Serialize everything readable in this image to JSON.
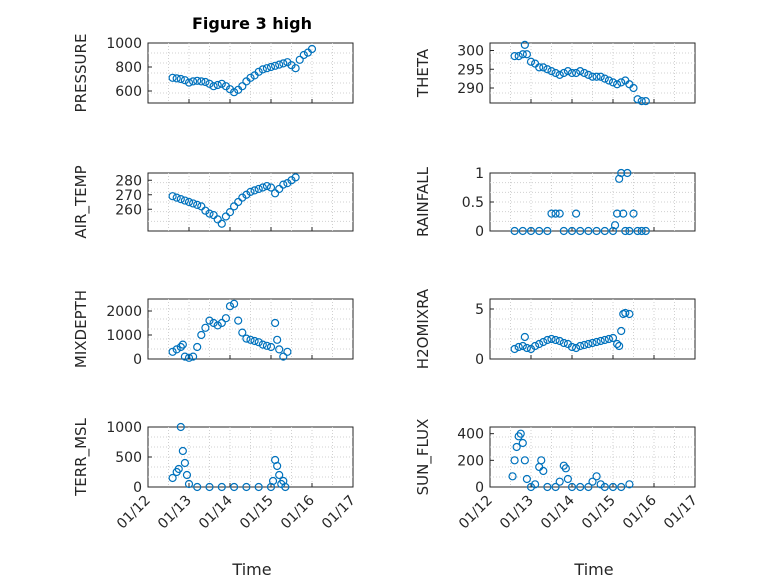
{
  "figure": {
    "title": "Figure 3 high",
    "xlabel": "Time"
  },
  "chart_data": [
    {
      "type": "scatter",
      "name": "PRESSURE",
      "ylabel": "PRESSURE",
      "ylim": [
        500,
        1000
      ],
      "yticks": [
        600,
        800,
        1000
      ],
      "xlim": [
        "01/12",
        "01/17"
      ],
      "xticks": [
        "01/12",
        "01/13",
        "01/14",
        "01/15",
        "01/16",
        "01/17"
      ],
      "show_xticks": false,
      "points": [
        [
          0.6,
          710
        ],
        [
          0.7,
          705
        ],
        [
          0.8,
          700
        ],
        [
          0.9,
          690
        ],
        [
          1.0,
          670
        ],
        [
          1.1,
          680
        ],
        [
          1.2,
          685
        ],
        [
          1.3,
          680
        ],
        [
          1.4,
          675
        ],
        [
          1.5,
          660
        ],
        [
          1.6,
          640
        ],
        [
          1.7,
          650
        ],
        [
          1.8,
          660
        ],
        [
          1.9,
          640
        ],
        [
          2.0,
          615
        ],
        [
          2.1,
          590
        ],
        [
          2.2,
          610
        ],
        [
          2.3,
          640
        ],
        [
          2.4,
          680
        ],
        [
          2.5,
          710
        ],
        [
          2.6,
          730
        ],
        [
          2.7,
          760
        ],
        [
          2.8,
          780
        ],
        [
          2.9,
          790
        ],
        [
          3.0,
          800
        ],
        [
          3.1,
          810
        ],
        [
          3.2,
          820
        ],
        [
          3.3,
          830
        ],
        [
          3.4,
          840
        ],
        [
          3.5,
          815
        ],
        [
          3.6,
          790
        ],
        [
          3.7,
          860
        ],
        [
          3.8,
          900
        ],
        [
          3.9,
          920
        ],
        [
          4.0,
          950
        ]
      ]
    },
    {
      "type": "scatter",
      "name": "THETA",
      "ylabel": "THETA",
      "ylim": [
        286,
        302
      ],
      "yticks": [
        290,
        295,
        300
      ],
      "xlim": [
        "01/12",
        "01/17"
      ],
      "xticks": [
        "01/12",
        "01/13",
        "01/14",
        "01/15",
        "01/16",
        "01/17"
      ],
      "show_xticks": false,
      "points": [
        [
          0.6,
          298.5
        ],
        [
          0.7,
          298.5
        ],
        [
          0.8,
          299
        ],
        [
          0.85,
          301.5
        ],
        [
          0.9,
          299
        ],
        [
          1.0,
          297
        ],
        [
          1.1,
          296.5
        ],
        [
          1.2,
          295.5
        ],
        [
          1.3,
          295.5
        ],
        [
          1.4,
          295
        ],
        [
          1.5,
          294.5
        ],
        [
          1.6,
          294
        ],
        [
          1.7,
          293.5
        ],
        [
          1.8,
          294
        ],
        [
          1.9,
          294.5
        ],
        [
          2.0,
          294
        ],
        [
          2.1,
          294
        ],
        [
          2.2,
          294.5
        ],
        [
          2.3,
          294
        ],
        [
          2.4,
          293.5
        ],
        [
          2.5,
          293
        ],
        [
          2.6,
          293
        ],
        [
          2.7,
          293
        ],
        [
          2.8,
          292.5
        ],
        [
          2.9,
          292
        ],
        [
          3.0,
          291.5
        ],
        [
          3.1,
          291
        ],
        [
          3.2,
          291.5
        ],
        [
          3.3,
          292
        ],
        [
          3.4,
          291
        ],
        [
          3.5,
          290
        ],
        [
          3.6,
          287
        ],
        [
          3.7,
          286.5
        ],
        [
          3.8,
          286.5
        ]
      ]
    },
    {
      "type": "scatter",
      "name": "AIR_TEMP",
      "ylabel": "AIR_TEMP",
      "ylim": [
        245,
        285
      ],
      "yticks": [
        260,
        270,
        280
      ],
      "xlim": [
        "01/12",
        "01/17"
      ],
      "xticks": [
        "01/12",
        "01/13",
        "01/14",
        "01/15",
        "01/16",
        "01/17"
      ],
      "show_xticks": false,
      "points": [
        [
          0.6,
          269
        ],
        [
          0.7,
          268
        ],
        [
          0.8,
          267
        ],
        [
          0.9,
          266
        ],
        [
          1.0,
          265
        ],
        [
          1.1,
          264
        ],
        [
          1.2,
          263
        ],
        [
          1.3,
          262
        ],
        [
          1.4,
          259
        ],
        [
          1.5,
          257
        ],
        [
          1.6,
          256
        ],
        [
          1.7,
          253
        ],
        [
          1.8,
          250
        ],
        [
          1.9,
          255
        ],
        [
          2.0,
          258
        ],
        [
          2.1,
          262
        ],
        [
          2.2,
          265
        ],
        [
          2.3,
          268
        ],
        [
          2.4,
          270
        ],
        [
          2.5,
          272
        ],
        [
          2.6,
          273
        ],
        [
          2.7,
          274
        ],
        [
          2.8,
          275
        ],
        [
          2.9,
          276
        ],
        [
          3.0,
          275
        ],
        [
          3.1,
          271
        ],
        [
          3.2,
          274
        ],
        [
          3.3,
          277
        ],
        [
          3.4,
          278
        ],
        [
          3.5,
          280
        ],
        [
          3.6,
          282
        ]
      ]
    },
    {
      "type": "scatter",
      "name": "RAINFALL",
      "ylabel": "RAINFALL",
      "ylim": [
        0,
        1
      ],
      "yticks": [
        0,
        0.5,
        1
      ],
      "xlim": [
        "01/12",
        "01/17"
      ],
      "xticks": [
        "01/12",
        "01/13",
        "01/14",
        "01/15",
        "01/16",
        "01/17"
      ],
      "show_xticks": false,
      "points": [
        [
          0.6,
          0
        ],
        [
          0.8,
          0
        ],
        [
          1.0,
          0
        ],
        [
          1.2,
          0
        ],
        [
          1.4,
          0
        ],
        [
          1.5,
          0.3
        ],
        [
          1.6,
          0.3
        ],
        [
          1.7,
          0.3
        ],
        [
          1.8,
          0
        ],
        [
          2.0,
          0
        ],
        [
          2.1,
          0.3
        ],
        [
          2.2,
          0
        ],
        [
          2.4,
          0
        ],
        [
          2.6,
          0
        ],
        [
          2.8,
          0
        ],
        [
          3.0,
          0
        ],
        [
          3.05,
          0.1
        ],
        [
          3.1,
          0.3
        ],
        [
          3.15,
          0.9
        ],
        [
          3.2,
          1.0
        ],
        [
          3.25,
          0.3
        ],
        [
          3.3,
          0
        ],
        [
          3.35,
          1.0
        ],
        [
          3.4,
          0
        ],
        [
          3.5,
          0.3
        ],
        [
          3.6,
          0
        ],
        [
          3.7,
          0
        ],
        [
          3.8,
          0
        ]
      ]
    },
    {
      "type": "scatter",
      "name": "MIXDEPTH",
      "ylabel": "MIXDEPTH",
      "ylim": [
        0,
        2500
      ],
      "yticks": [
        0,
        1000,
        2000
      ],
      "xlim": [
        "01/12",
        "01/17"
      ],
      "xticks": [
        "01/12",
        "01/13",
        "01/14",
        "01/15",
        "01/16",
        "01/17"
      ],
      "show_xticks": false,
      "points": [
        [
          0.6,
          300
        ],
        [
          0.7,
          400
        ],
        [
          0.8,
          500
        ],
        [
          0.85,
          600
        ],
        [
          0.9,
          100
        ],
        [
          1.0,
          50
        ],
        [
          1.1,
          100
        ],
        [
          1.2,
          500
        ],
        [
          1.3,
          1000
        ],
        [
          1.4,
          1300
        ],
        [
          1.5,
          1600
        ],
        [
          1.6,
          1500
        ],
        [
          1.7,
          1400
        ],
        [
          1.8,
          1500
        ],
        [
          1.9,
          1700
        ],
        [
          2.0,
          2200
        ],
        [
          2.1,
          2300
        ],
        [
          2.2,
          1600
        ],
        [
          2.3,
          1100
        ],
        [
          2.4,
          850
        ],
        [
          2.5,
          800
        ],
        [
          2.6,
          750
        ],
        [
          2.7,
          700
        ],
        [
          2.8,
          600
        ],
        [
          2.9,
          550
        ],
        [
          3.0,
          500
        ],
        [
          3.1,
          1500
        ],
        [
          3.15,
          800
        ],
        [
          3.2,
          400
        ],
        [
          3.3,
          100
        ],
        [
          3.4,
          300
        ]
      ]
    },
    {
      "type": "scatter",
      "name": "H2OMIXRA",
      "ylabel": "H2OMIXRA",
      "ylim": [
        0,
        6
      ],
      "yticks": [
        0,
        5
      ],
      "xlim": [
        "01/12",
        "01/17"
      ],
      "xticks": [
        "01/12",
        "01/13",
        "01/14",
        "01/15",
        "01/16",
        "01/17"
      ],
      "show_xticks": false,
      "points": [
        [
          0.6,
          1.0
        ],
        [
          0.7,
          1.2
        ],
        [
          0.8,
          1.3
        ],
        [
          0.85,
          2.2
        ],
        [
          0.9,
          1.1
        ],
        [
          1.0,
          1.0
        ],
        [
          1.1,
          1.3
        ],
        [
          1.2,
          1.5
        ],
        [
          1.3,
          1.7
        ],
        [
          1.4,
          1.9
        ],
        [
          1.5,
          2.0
        ],
        [
          1.6,
          1.9
        ],
        [
          1.7,
          1.8
        ],
        [
          1.8,
          1.6
        ],
        [
          1.9,
          1.5
        ],
        [
          2.0,
          1.2
        ],
        [
          2.1,
          1.1
        ],
        [
          2.2,
          1.3
        ],
        [
          2.3,
          1.4
        ],
        [
          2.4,
          1.5
        ],
        [
          2.5,
          1.6
        ],
        [
          2.6,
          1.7
        ],
        [
          2.7,
          1.8
        ],
        [
          2.8,
          1.9
        ],
        [
          2.9,
          2.0
        ],
        [
          3.0,
          2.1
        ],
        [
          3.1,
          1.5
        ],
        [
          3.15,
          1.3
        ],
        [
          3.2,
          2.8
        ],
        [
          3.25,
          4.5
        ],
        [
          3.3,
          4.6
        ],
        [
          3.4,
          4.5
        ]
      ]
    },
    {
      "type": "scatter",
      "name": "TERR_MSL",
      "ylabel": "TERR_MSL",
      "ylim": [
        0,
        1000
      ],
      "yticks": [
        0,
        500,
        1000
      ],
      "xlim": [
        "01/12",
        "01/17"
      ],
      "xticks": [
        "01/12",
        "01/13",
        "01/14",
        "01/15",
        "01/16",
        "01/17"
      ],
      "show_xticks": true,
      "points": [
        [
          0.6,
          150
        ],
        [
          0.7,
          250
        ],
        [
          0.75,
          300
        ],
        [
          0.8,
          1000
        ],
        [
          0.85,
          600
        ],
        [
          0.9,
          400
        ],
        [
          0.95,
          200
        ],
        [
          1.0,
          50
        ],
        [
          1.2,
          0
        ],
        [
          1.5,
          0
        ],
        [
          1.8,
          0
        ],
        [
          2.1,
          0
        ],
        [
          2.4,
          0
        ],
        [
          2.7,
          0
        ],
        [
          3.0,
          0
        ],
        [
          3.05,
          100
        ],
        [
          3.1,
          450
        ],
        [
          3.15,
          350
        ],
        [
          3.2,
          200
        ],
        [
          3.25,
          50
        ],
        [
          3.3,
          100
        ],
        [
          3.35,
          0
        ]
      ]
    },
    {
      "type": "scatter",
      "name": "SUN_FLUX",
      "ylabel": "SUN_FLUX",
      "ylim": [
        0,
        450
      ],
      "yticks": [
        0,
        200,
        400
      ],
      "xlim": [
        "01/12",
        "01/17"
      ],
      "xticks": [
        "01/12",
        "01/13",
        "01/14",
        "01/15",
        "01/16",
        "01/17"
      ],
      "show_xticks": true,
      "points": [
        [
          0.55,
          80
        ],
        [
          0.6,
          200
        ],
        [
          0.65,
          300
        ],
        [
          0.7,
          380
        ],
        [
          0.75,
          400
        ],
        [
          0.8,
          330
        ],
        [
          0.85,
          200
        ],
        [
          0.9,
          60
        ],
        [
          1.0,
          0
        ],
        [
          1.1,
          20
        ],
        [
          1.2,
          150
        ],
        [
          1.25,
          200
        ],
        [
          1.3,
          120
        ],
        [
          1.4,
          0
        ],
        [
          1.6,
          0
        ],
        [
          1.7,
          40
        ],
        [
          1.8,
          160
        ],
        [
          1.85,
          140
        ],
        [
          1.9,
          60
        ],
        [
          2.0,
          0
        ],
        [
          2.2,
          0
        ],
        [
          2.4,
          0
        ],
        [
          2.5,
          40
        ],
        [
          2.6,
          80
        ],
        [
          2.7,
          20
        ],
        [
          2.8,
          0
        ],
        [
          3.0,
          0
        ],
        [
          3.2,
          0
        ],
        [
          3.4,
          20
        ]
      ]
    }
  ]
}
